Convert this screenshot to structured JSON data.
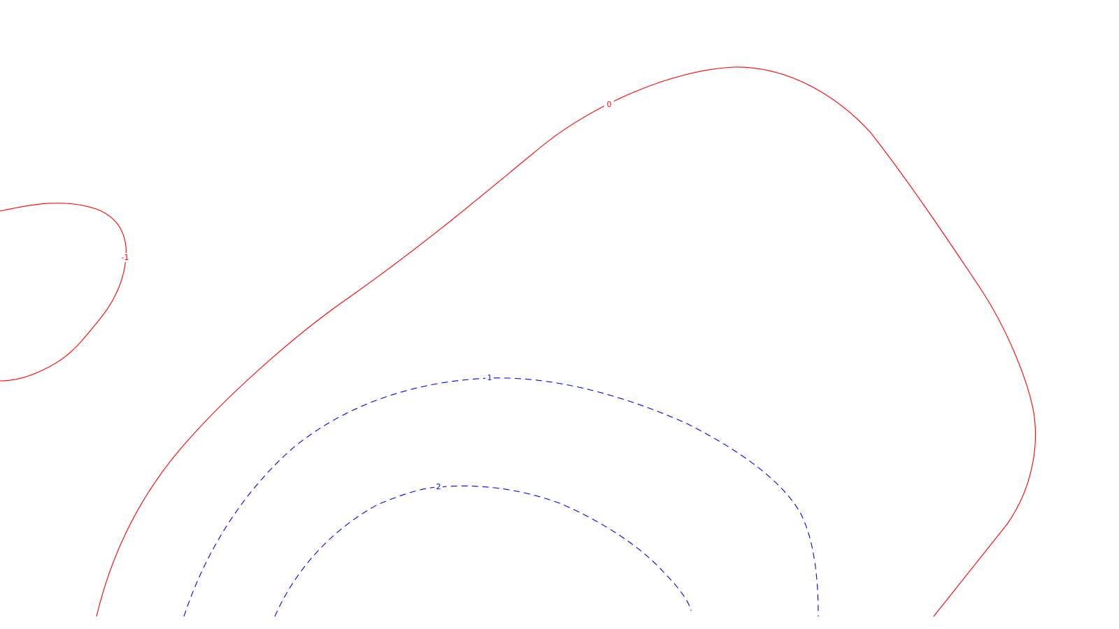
{
  "chart_data": {
    "type": "contour",
    "title": "",
    "xlabel": "",
    "ylabel": "",
    "grid": false,
    "legend": "none",
    "levels": [
      {
        "value": -1,
        "label": "-1",
        "color": "#ff0000",
        "style": "solid"
      },
      {
        "value": 0,
        "label": "0",
        "color": "#ff0000",
        "style": "solid"
      },
      {
        "value": 1,
        "label": "1",
        "color": "#0000ff",
        "style": "dashed"
      },
      {
        "value": 2,
        "label": "2",
        "color": "#0000ff",
        "style": "dashed"
      }
    ]
  }
}
